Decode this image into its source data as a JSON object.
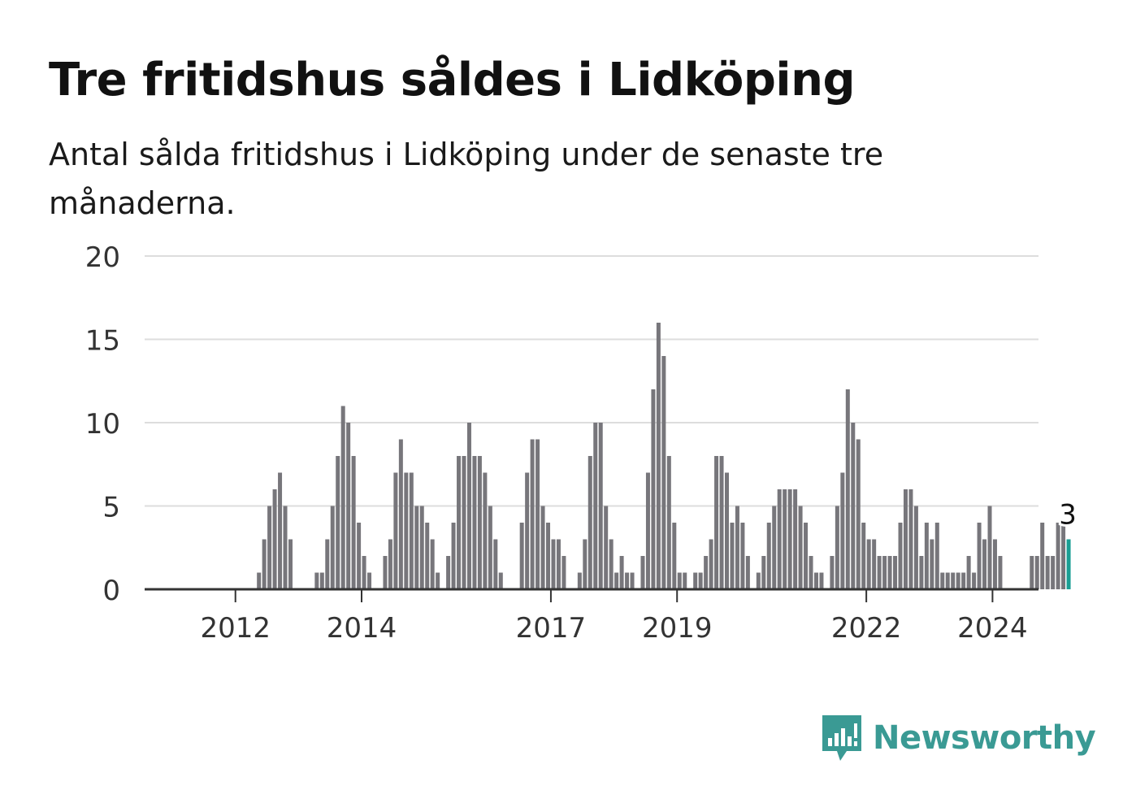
{
  "header": {
    "title": "Tre fritidshus såldes i Lidköping",
    "subtitle": "Antal sålda fritidshus i Lidköping under de senaste tre månaderna."
  },
  "brand": {
    "name": "Newsworthy",
    "icon": "newsworthy-logo-icon",
    "color": "#3a9a94"
  },
  "colors": {
    "bar": "#77767b",
    "highlight": "#1a9e93",
    "grid": "#dddddd",
    "axis": "#333333"
  },
  "chart_data": {
    "type": "bar",
    "title": "Tre fritidshus såldes i Lidköping",
    "subtitle": "Antal sålda fritidshus i Lidköping under de senaste tre månaderna.",
    "xlabel": "",
    "ylabel": "",
    "ylim": [
      0,
      20
    ],
    "yticks": [
      0,
      5,
      10,
      15,
      20
    ],
    "grid": true,
    "xtick_labels": [
      {
        "label": "2012",
        "index": 9
      },
      {
        "label": "2014",
        "index": 33
      },
      {
        "label": "2017",
        "index": 69
      },
      {
        "label": "2019",
        "index": 93
      },
      {
        "label": "2022",
        "index": 129
      },
      {
        "label": "2024",
        "index": 153
      }
    ],
    "series_start": "2011-01",
    "values": [
      0,
      0,
      0,
      0,
      0,
      0,
      0,
      0,
      0,
      0,
      0,
      1,
      3,
      5,
      6,
      7,
      5,
      3,
      0,
      0,
      0,
      0,
      1,
      1,
      3,
      5,
      8,
      11,
      10,
      8,
      4,
      2,
      1,
      0,
      0,
      2,
      3,
      7,
      9,
      7,
      7,
      5,
      5,
      4,
      3,
      1,
      0,
      2,
      4,
      8,
      8,
      10,
      8,
      8,
      7,
      5,
      3,
      1,
      0,
      0,
      0,
      4,
      7,
      9,
      9,
      5,
      4,
      3,
      3,
      2,
      0,
      0,
      1,
      3,
      8,
      10,
      10,
      5,
      3,
      1,
      2,
      1,
      1,
      0,
      2,
      7,
      12,
      16,
      14,
      8,
      4,
      1,
      1,
      0,
      1,
      1,
      2,
      3,
      8,
      8,
      7,
      4,
      5,
      4,
      2,
      0,
      1,
      2,
      4,
      5,
      6,
      6,
      6,
      6,
      5,
      4,
      2,
      1,
      1,
      0,
      2,
      5,
      7,
      12,
      10,
      9,
      4,
      3,
      3,
      2,
      2,
      2,
      2,
      4,
      6,
      6,
      5,
      2,
      4,
      3,
      4,
      1,
      1,
      1,
      1,
      1,
      2,
      1,
      4,
      3,
      5,
      3,
      2,
      0,
      0,
      0,
      0,
      0,
      2,
      2,
      4,
      2,
      2,
      4,
      4,
      3
    ],
    "highlight_last": true,
    "annotation": {
      "text": "3",
      "index": 165
    }
  }
}
